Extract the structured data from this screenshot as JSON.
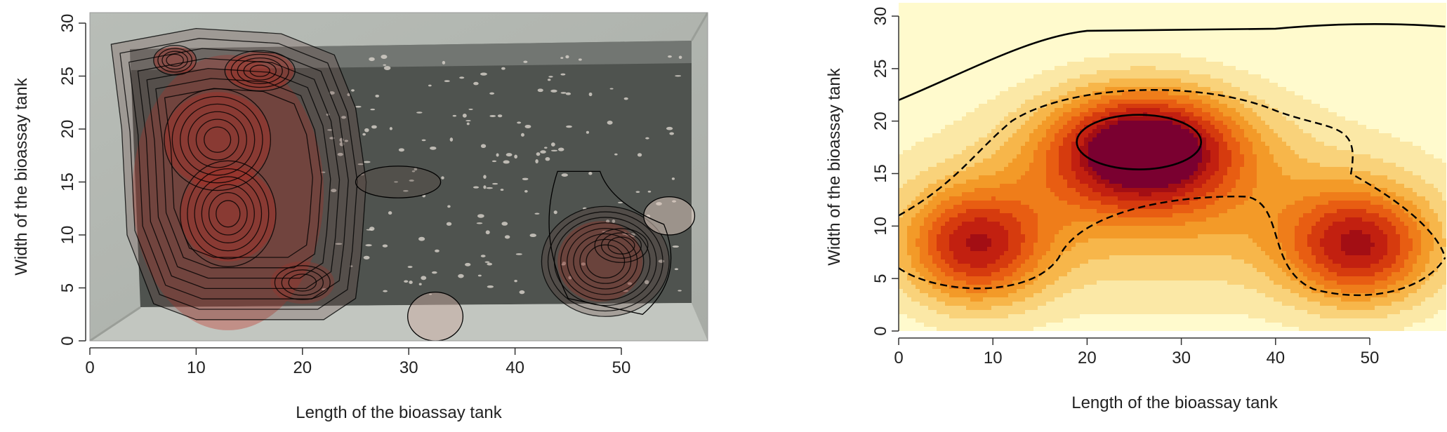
{
  "chart_data": [
    {
      "type": "heatmap",
      "title": "",
      "xlabel": "Length of the bioassay tank",
      "ylabel": "Width of the bioassay tank",
      "xlim": [
        0,
        58
      ],
      "ylim": [
        0,
        31
      ],
      "xticks": [
        0,
        10,
        20,
        30,
        40,
        50
      ],
      "yticks": [
        0,
        5,
        10,
        15,
        20,
        25,
        30
      ],
      "background": "photo-of-bioassay-tank",
      "density_peaks": [
        {
          "x": 8,
          "y": 26.5,
          "level": 0.75
        },
        {
          "x": 16,
          "y": 25.5,
          "level": 0.8
        },
        {
          "x": 12,
          "y": 19,
          "level": 0.95
        },
        {
          "x": 13,
          "y": 12,
          "level": 0.95
        },
        {
          "x": 20,
          "y": 5.5,
          "level": 0.4
        },
        {
          "x": 48,
          "y": 6.5,
          "level": 0.6
        },
        {
          "x": 50,
          "y": 9,
          "level": 0.45
        },
        {
          "x": 29,
          "y": 15,
          "level": 0.2
        },
        {
          "x": 32.5,
          "y": 2,
          "level": 0.15
        },
        {
          "x": 54.5,
          "y": 12,
          "level": 0.15
        }
      ],
      "colors": {
        "density": "#c0281c",
        "contour": "#000000"
      }
    },
    {
      "type": "heatmap",
      "title": "",
      "xlabel": "Length of the bioassay tank",
      "ylabel": "Width of the bioassay tank",
      "xlim": [
        0,
        58
      ],
      "ylim": [
        0,
        31
      ],
      "xticks": [
        0,
        10,
        20,
        30,
        40,
        50
      ],
      "yticks": [
        0,
        5,
        10,
        15,
        20,
        25,
        30
      ],
      "peaks": [
        {
          "x": 26,
          "y": 18,
          "level": 1.0
        },
        {
          "x": 8,
          "y": 8,
          "level": 0.72
        },
        {
          "x": 49,
          "y": 8,
          "level": 0.75
        }
      ],
      "colors": {
        "scale": [
          "#fffacd",
          "#fbe8a6",
          "#f9d27a",
          "#f7b64a",
          "#f39a28",
          "#ef7d1a",
          "#e85d12",
          "#d63b0e",
          "#c22010",
          "#a30e14",
          "#7a0030"
        ],
        "contour": "#000000"
      }
    }
  ]
}
